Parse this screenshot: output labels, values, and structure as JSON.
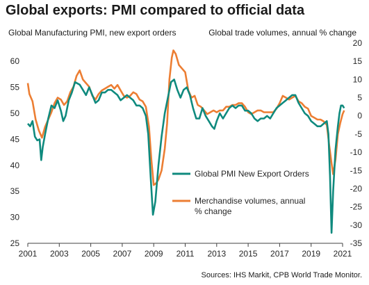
{
  "chart_data": {
    "type": "line",
    "title": "Global exports: PMI compared to official data",
    "left_axis_label": "Global Manufacturing PMI, new export orders",
    "right_axis_label": "Global trade volumes,  annual % change",
    "source": "Sources: IHS Markit,  CPB World Trade Monitor.",
    "x_ticks": [
      "2001",
      "2003",
      "2005",
      "2007",
      "2009",
      "2011",
      "2013",
      "2015",
      "2017",
      "2019",
      "2021"
    ],
    "y_left_ticks": [
      25,
      30,
      35,
      40,
      45,
      50,
      55,
      60
    ],
    "y_left_range": [
      25,
      63.5
    ],
    "y_right_ticks": [
      -35,
      -30,
      -25,
      -20,
      -15,
      -10,
      -5,
      0,
      5,
      10,
      15,
      20
    ],
    "y_right_range": [
      -35,
      20
    ],
    "x_range": [
      2001,
      2021
    ],
    "legend_placement": "lower-center",
    "series": [
      {
        "name": "Global PMI New Export Orders",
        "axis": "left",
        "color": "#0f8a7e",
        "points": [
          [
            2001.0,
            48.0
          ],
          [
            2001.15,
            47.5
          ],
          [
            2001.3,
            48.5
          ],
          [
            2001.45,
            45.5
          ],
          [
            2001.6,
            44.8
          ],
          [
            2001.75,
            45.0
          ],
          [
            2001.85,
            41.0
          ],
          [
            2001.95,
            43.5
          ],
          [
            2002.1,
            46.0
          ],
          [
            2002.3,
            49.0
          ],
          [
            2002.5,
            51.5
          ],
          [
            2002.7,
            51.0
          ],
          [
            2002.9,
            52.5
          ],
          [
            2003.1,
            50.5
          ],
          [
            2003.25,
            48.5
          ],
          [
            2003.4,
            49.5
          ],
          [
            2003.6,
            52.5
          ],
          [
            2003.8,
            54.0
          ],
          [
            2004.0,
            56.0
          ],
          [
            2004.3,
            55.5
          ],
          [
            2004.5,
            54.5
          ],
          [
            2004.7,
            53.5
          ],
          [
            2004.9,
            55.0
          ],
          [
            2005.1,
            53.5
          ],
          [
            2005.3,
            52.0
          ],
          [
            2005.5,
            52.5
          ],
          [
            2005.7,
            54.0
          ],
          [
            2005.9,
            54.0
          ],
          [
            2006.1,
            54.5
          ],
          [
            2006.3,
            54.5
          ],
          [
            2006.5,
            54.0
          ],
          [
            2006.7,
            53.5
          ],
          [
            2006.9,
            52.5
          ],
          [
            2007.1,
            53.0
          ],
          [
            2007.3,
            53.5
          ],
          [
            2007.5,
            53.0
          ],
          [
            2007.7,
            52.5
          ],
          [
            2007.9,
            51.5
          ],
          [
            2008.1,
            51.5
          ],
          [
            2008.3,
            51.0
          ],
          [
            2008.5,
            49.5
          ],
          [
            2008.65,
            46.0
          ],
          [
            2008.8,
            38.0
          ],
          [
            2008.95,
            30.5
          ],
          [
            2009.1,
            33.0
          ],
          [
            2009.3,
            40.0
          ],
          [
            2009.5,
            45.5
          ],
          [
            2009.7,
            50.0
          ],
          [
            2009.9,
            53.0
          ],
          [
            2010.1,
            56.0
          ],
          [
            2010.3,
            56.5
          ],
          [
            2010.5,
            54.5
          ],
          [
            2010.7,
            53.0
          ],
          [
            2010.9,
            54.5
          ],
          [
            2011.1,
            55.0
          ],
          [
            2011.3,
            53.5
          ],
          [
            2011.5,
            51.0
          ],
          [
            2011.7,
            49.0
          ],
          [
            2011.9,
            49.0
          ],
          [
            2012.1,
            51.0
          ],
          [
            2012.3,
            49.5
          ],
          [
            2012.5,
            48.5
          ],
          [
            2012.7,
            47.5
          ],
          [
            2012.85,
            47.0
          ],
          [
            2013.0,
            48.5
          ],
          [
            2013.2,
            50.0
          ],
          [
            2013.4,
            49.0
          ],
          [
            2013.6,
            50.0
          ],
          [
            2013.8,
            51.0
          ],
          [
            2014.0,
            51.5
          ],
          [
            2014.2,
            51.0
          ],
          [
            2014.4,
            51.5
          ],
          [
            2014.6,
            51.5
          ],
          [
            2014.8,
            50.5
          ],
          [
            2015.0,
            50.5
          ],
          [
            2015.2,
            50.0
          ],
          [
            2015.4,
            49.0
          ],
          [
            2015.6,
            48.5
          ],
          [
            2015.8,
            49.0
          ],
          [
            2016.0,
            49.0
          ],
          [
            2016.2,
            49.5
          ],
          [
            2016.4,
            49.0
          ],
          [
            2016.6,
            50.0
          ],
          [
            2016.8,
            51.0
          ],
          [
            2017.0,
            51.5
          ],
          [
            2017.2,
            52.0
          ],
          [
            2017.4,
            52.5
          ],
          [
            2017.6,
            53.0
          ],
          [
            2017.8,
            53.5
          ],
          [
            2018.0,
            53.5
          ],
          [
            2018.2,
            52.0
          ],
          [
            2018.4,
            51.0
          ],
          [
            2018.6,
            50.0
          ],
          [
            2018.8,
            49.5
          ],
          [
            2019.0,
            48.5
          ],
          [
            2019.2,
            48.0
          ],
          [
            2019.4,
            47.5
          ],
          [
            2019.6,
            47.5
          ],
          [
            2019.8,
            48.0
          ],
          [
            2020.0,
            48.5
          ],
          [
            2020.1,
            46.0
          ],
          [
            2020.2,
            38.0
          ],
          [
            2020.3,
            27.0
          ],
          [
            2020.4,
            35.0
          ],
          [
            2020.55,
            43.0
          ],
          [
            2020.7,
            47.5
          ],
          [
            2020.8,
            50.0
          ],
          [
            2020.9,
            51.5
          ],
          [
            2021.0,
            51.5
          ],
          [
            2021.1,
            51.0
          ]
        ]
      },
      {
        "name": "Merchandise volumes, annual % change",
        "axis": "right",
        "color": "#ec7e33",
        "points": [
          [
            2001.0,
            9.0
          ],
          [
            2001.1,
            6.0
          ],
          [
            2001.3,
            4.0
          ],
          [
            2001.5,
            -1.0
          ],
          [
            2001.7,
            -4.0
          ],
          [
            2001.9,
            -6.0
          ],
          [
            2002.1,
            -3.0
          ],
          [
            2002.3,
            -1.0
          ],
          [
            2002.5,
            1.0
          ],
          [
            2002.7,
            3.5
          ],
          [
            2002.9,
            5.0
          ],
          [
            2003.1,
            4.5
          ],
          [
            2003.3,
            3.0
          ],
          [
            2003.5,
            4.0
          ],
          [
            2003.7,
            6.5
          ],
          [
            2003.9,
            8.0
          ],
          [
            2004.1,
            11.0
          ],
          [
            2004.3,
            12.5
          ],
          [
            2004.5,
            10.0
          ],
          [
            2004.7,
            9.0
          ],
          [
            2004.9,
            8.0
          ],
          [
            2005.1,
            5.5
          ],
          [
            2005.3,
            4.5
          ],
          [
            2005.5,
            6.0
          ],
          [
            2005.7,
            7.0
          ],
          [
            2005.9,
            7.5
          ],
          [
            2006.1,
            8.0
          ],
          [
            2006.3,
            8.5
          ],
          [
            2006.5,
            7.5
          ],
          [
            2006.7,
            8.5
          ],
          [
            2006.9,
            7.0
          ],
          [
            2007.1,
            5.5
          ],
          [
            2007.3,
            5.0
          ],
          [
            2007.5,
            5.5
          ],
          [
            2007.7,
            6.5
          ],
          [
            2007.9,
            6.0
          ],
          [
            2008.1,
            4.5
          ],
          [
            2008.3,
            4.0
          ],
          [
            2008.5,
            2.5
          ],
          [
            2008.7,
            -3.0
          ],
          [
            2008.85,
            -12.0
          ],
          [
            2009.0,
            -19.0
          ],
          [
            2009.15,
            -18.5
          ],
          [
            2009.3,
            -17.5
          ],
          [
            2009.5,
            -15.0
          ],
          [
            2009.7,
            -9.0
          ],
          [
            2009.85,
            -2.0
          ],
          [
            2010.0,
            10.0
          ],
          [
            2010.15,
            16.0
          ],
          [
            2010.25,
            18.0
          ],
          [
            2010.4,
            17.0
          ],
          [
            2010.6,
            14.0
          ],
          [
            2010.8,
            13.0
          ],
          [
            2011.0,
            12.0
          ],
          [
            2011.2,
            7.0
          ],
          [
            2011.4,
            5.0
          ],
          [
            2011.6,
            5.5
          ],
          [
            2011.8,
            3.0
          ],
          [
            2012.0,
            2.5
          ],
          [
            2012.2,
            1.5
          ],
          [
            2012.4,
            0.5
          ],
          [
            2012.6,
            1.0
          ],
          [
            2012.8,
            1.5
          ],
          [
            2013.0,
            1.0
          ],
          [
            2013.2,
            1.5
          ],
          [
            2013.4,
            1.5
          ],
          [
            2013.6,
            2.5
          ],
          [
            2013.8,
            2.5
          ],
          [
            2014.0,
            3.0
          ],
          [
            2014.2,
            3.0
          ],
          [
            2014.4,
            3.5
          ],
          [
            2014.6,
            3.5
          ],
          [
            2014.8,
            2.5
          ],
          [
            2015.0,
            1.0
          ],
          [
            2015.2,
            0.5
          ],
          [
            2015.4,
            1.0
          ],
          [
            2015.6,
            1.5
          ],
          [
            2015.8,
            1.5
          ],
          [
            2016.0,
            1.0
          ],
          [
            2016.2,
            1.0
          ],
          [
            2016.4,
            1.0
          ],
          [
            2016.6,
            1.0
          ],
          [
            2016.8,
            2.0
          ],
          [
            2017.0,
            3.5
          ],
          [
            2017.2,
            5.5
          ],
          [
            2017.4,
            5.0
          ],
          [
            2017.6,
            4.5
          ],
          [
            2017.8,
            5.0
          ],
          [
            2018.0,
            5.5
          ],
          [
            2018.2,
            4.0
          ],
          [
            2018.4,
            3.5
          ],
          [
            2018.6,
            2.5
          ],
          [
            2018.8,
            2.0
          ],
          [
            2019.0,
            0.0
          ],
          [
            2019.2,
            -0.5
          ],
          [
            2019.4,
            -1.0
          ],
          [
            2019.6,
            -1.0
          ],
          [
            2019.8,
            -1.5
          ],
          [
            2020.0,
            -2.5
          ],
          [
            2020.15,
            -8.0
          ],
          [
            2020.3,
            -13.0
          ],
          [
            2020.4,
            -16.0
          ],
          [
            2020.55,
            -12.0
          ],
          [
            2020.7,
            -5.0
          ],
          [
            2020.85,
            -2.0
          ],
          [
            2021.0,
            0.5
          ],
          [
            2021.1,
            1.5
          ]
        ]
      }
    ]
  }
}
